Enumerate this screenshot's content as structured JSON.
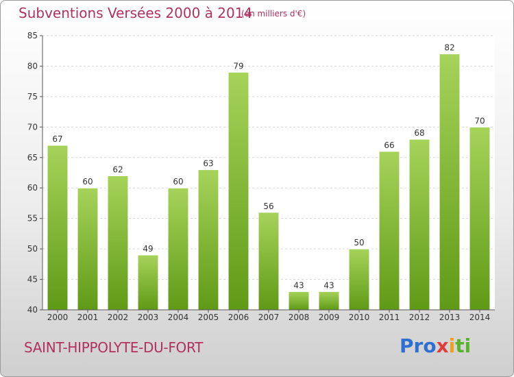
{
  "chart_data": {
    "type": "bar",
    "title": "Subventions Versées 2000 à 2014",
    "subtitle": "(en milliers d'€)",
    "categories": [
      "2000",
      "2001",
      "2002",
      "2003",
      "2004",
      "2005",
      "2006",
      "2007",
      "2008",
      "2009",
      "2010",
      "2011",
      "2012",
      "2013",
      "2014"
    ],
    "values": [
      67,
      60,
      62,
      49,
      60,
      63,
      79,
      56,
      43,
      43,
      50,
      66,
      68,
      82,
      70
    ],
    "ylim": [
      40,
      85
    ],
    "yticks": [
      40,
      45,
      50,
      55,
      60,
      65,
      70,
      75,
      80,
      85
    ],
    "grid": true,
    "bar_colors": {
      "top": "#a6d35a",
      "bottom": "#5f9a16"
    }
  },
  "footer": {
    "place": "SAINT-HIPPOLYTE-DU-FORT",
    "logo": "Proxiti"
  }
}
